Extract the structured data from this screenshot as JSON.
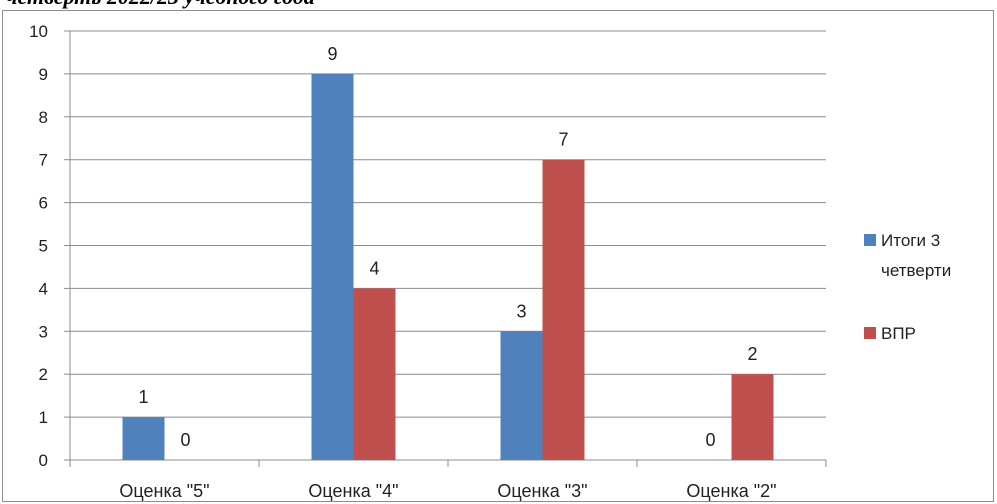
{
  "caption": "четверть 2022/23 учебного года",
  "chart_data": {
    "type": "bar",
    "title": "",
    "xlabel": "",
    "ylabel": "",
    "categories": [
      "Оценка \"5\"",
      "Оценка \"4\"",
      "Оценка \"3\"",
      "Оценка \"2\""
    ],
    "series": [
      {
        "name": "Итоги 3 четверти",
        "legend_lines": [
          "Итоги 3",
          "четверти"
        ],
        "values": [
          1,
          9,
          3,
          0
        ],
        "color": "#4f81bd"
      },
      {
        "name": "ВПР",
        "legend_lines": [
          "ВПР"
        ],
        "values": [
          0,
          4,
          7,
          2
        ],
        "color": "#c0504d"
      }
    ],
    "ylim": [
      0,
      10
    ],
    "yticks": [
      "0",
      "1",
      "2",
      "3",
      "4",
      "5",
      "6",
      "7",
      "8",
      "9",
      "10"
    ],
    "grid": true,
    "legend_position": "right",
    "data_labels": true
  }
}
